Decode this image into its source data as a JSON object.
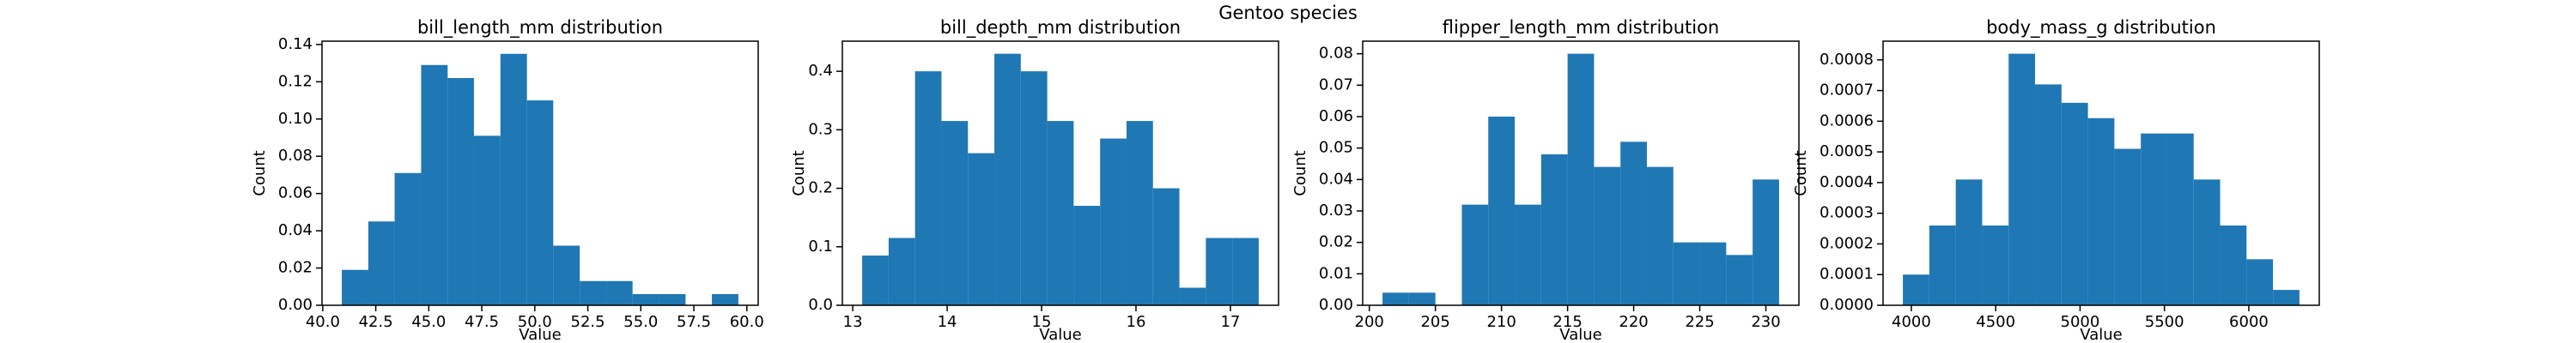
{
  "title": "Gentoo species",
  "chart_data": [
    {
      "type": "histogram",
      "title": "bill_length_mm distribution",
      "xlabel": "Value",
      "ylabel": "Count",
      "color": "#1f77b4",
      "bins": [
        40.9,
        42.15,
        43.39,
        44.64,
        45.89,
        47.13,
        48.38,
        49.63,
        50.87,
        52.12,
        53.37,
        54.61,
        55.86,
        57.11,
        58.35,
        59.6
      ],
      "values": [
        0.019,
        0.045,
        0.071,
        0.129,
        0.122,
        0.091,
        0.135,
        0.11,
        0.032,
        0.013,
        0.013,
        0.006,
        0.006,
        0,
        0.006
      ],
      "xlim": [
        39.965,
        60.535
      ],
      "xticks": [
        {
          "value": 40,
          "label": "40.0"
        },
        {
          "value": 42.5,
          "label": "42.5"
        },
        {
          "value": 45,
          "label": "45.0"
        },
        {
          "value": 47.5,
          "label": "47.5"
        },
        {
          "value": 50,
          "label": "50.0"
        },
        {
          "value": 52.5,
          "label": "52.5"
        },
        {
          "value": 55,
          "label": "55.0"
        },
        {
          "value": 57.5,
          "label": "57.5"
        },
        {
          "value": 60,
          "label": "60.0"
        }
      ],
      "ylim": [
        0,
        0.1418
      ],
      "yticks": [
        {
          "value": 0,
          "label": "0.00"
        },
        {
          "value": 0.02,
          "label": "0.02"
        },
        {
          "value": 0.04,
          "label": "0.04"
        },
        {
          "value": 0.06,
          "label": "0.06"
        },
        {
          "value": 0.08,
          "label": "0.08"
        },
        {
          "value": 0.1,
          "label": "0.10"
        },
        {
          "value": 0.12,
          "label": "0.12"
        },
        {
          "value": 0.14,
          "label": "0.14"
        }
      ]
    },
    {
      "type": "histogram",
      "title": "bill_depth_mm distribution",
      "xlabel": "Value",
      "ylabel": "Count",
      "color": "#1f77b4",
      "bins": [
        13.1,
        13.38,
        13.66,
        13.94,
        14.22,
        14.5,
        14.78,
        15.06,
        15.34,
        15.62,
        15.9,
        16.18,
        16.46,
        16.74,
        17.02,
        17.3
      ],
      "values": [
        0.085,
        0.115,
        0.4,
        0.315,
        0.26,
        0.43,
        0.4,
        0.315,
        0.17,
        0.285,
        0.315,
        0.2,
        0.03,
        0.115,
        0.115
      ],
      "xlim": [
        12.89,
        17.51
      ],
      "xticks": [
        13,
        14,
        15,
        16,
        17
      ],
      "ylim": [
        0,
        0.4515
      ],
      "yticks": [
        {
          "value": 0,
          "label": "0.0"
        },
        {
          "value": 0.1,
          "label": "0.1"
        },
        {
          "value": 0.2,
          "label": "0.2"
        },
        {
          "value": 0.3,
          "label": "0.3"
        },
        {
          "value": 0.4,
          "label": "0.4"
        }
      ]
    },
    {
      "type": "histogram",
      "title": "flipper_length_mm distribution",
      "xlabel": "Value",
      "ylabel": "Count",
      "color": "#1f77b4",
      "bins": [
        201,
        203,
        205,
        207,
        209,
        211,
        213,
        215,
        217,
        219,
        221,
        223,
        225,
        227,
        229,
        231
      ],
      "values": [
        0.004,
        0.004,
        0,
        0.032,
        0.06,
        0.032,
        0.048,
        0.08,
        0.044,
        0.052,
        0.044,
        0.02,
        0.02,
        0.016,
        0.04
      ],
      "xlim": [
        199.5,
        232.5
      ],
      "xticks": [
        200,
        205,
        210,
        215,
        220,
        225,
        230
      ],
      "ylim": [
        0,
        0.084
      ],
      "yticks": [
        {
          "value": 0,
          "label": "0.00"
        },
        {
          "value": 0.01,
          "label": "0.01"
        },
        {
          "value": 0.02,
          "label": "0.02"
        },
        {
          "value": 0.03,
          "label": "0.03"
        },
        {
          "value": 0.04,
          "label": "0.04"
        },
        {
          "value": 0.05,
          "label": "0.05"
        },
        {
          "value": 0.06,
          "label": "0.06"
        },
        {
          "value": 0.07,
          "label": "0.07"
        },
        {
          "value": 0.08,
          "label": "0.08"
        }
      ]
    },
    {
      "type": "histogram",
      "title": "body_mass_g distribution",
      "xlabel": "Value",
      "ylabel": "Count",
      "color": "#1f77b4",
      "bins": [
        3950,
        4106.67,
        4263.33,
        4420,
        4576.67,
        4733.33,
        4890,
        5046.67,
        5203.33,
        5360,
        5516.67,
        5673.33,
        5830,
        5986.67,
        6143.33,
        6300
      ],
      "values": [
        0.0001,
        0.00026,
        0.00041,
        0.00026,
        0.00082,
        0.00072,
        0.00066,
        0.00061,
        0.00051,
        0.00056,
        0.00056,
        0.00041,
        0.00026,
        0.00015,
        5e-05
      ],
      "xlim": [
        3832.5,
        6417.5
      ],
      "xticks": [
        4000,
        4500,
        5000,
        5500,
        6000
      ],
      "ylim": [
        0,
        0.000861
      ],
      "yticks": [
        {
          "value": 0,
          "label": "0.0000"
        },
        {
          "value": 0.0001,
          "label": "0.0001"
        },
        {
          "value": 0.0002,
          "label": "0.0002"
        },
        {
          "value": 0.0003,
          "label": "0.0003"
        },
        {
          "value": 0.0004,
          "label": "0.0004"
        },
        {
          "value": 0.0005,
          "label": "0.0005"
        },
        {
          "value": 0.0006,
          "label": "0.0006"
        },
        {
          "value": 0.0007,
          "label": "0.0007"
        },
        {
          "value": 0.0008,
          "label": "0.0008"
        }
      ]
    }
  ]
}
